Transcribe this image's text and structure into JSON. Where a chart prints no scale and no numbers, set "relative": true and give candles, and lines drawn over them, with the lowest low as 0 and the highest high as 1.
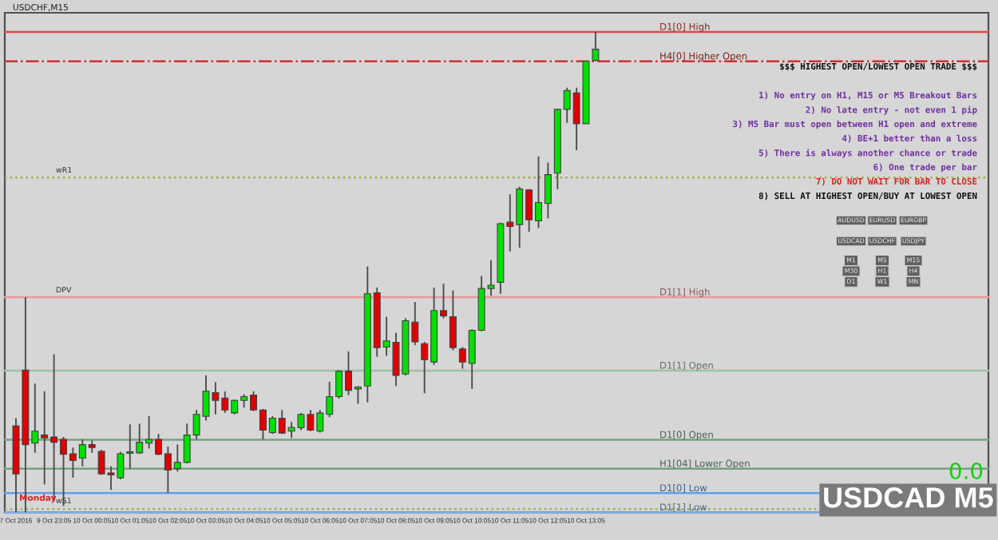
{
  "chart_data": {
    "type": "candlestick",
    "relative": true,
    "title": "USDCHF,M15",
    "categories": [
      "7 Oct 2016",
      null,
      null,
      null,
      "9 Oct 23:05",
      null,
      null,
      null,
      "10 Oct 00:05",
      null,
      null,
      null,
      "10 Oct 01:05",
      null,
      null,
      null,
      "10 Oct 02:05",
      null,
      null,
      null,
      "10 Oct 03:05",
      null,
      null,
      null,
      "10 Oct 04:05",
      null,
      null,
      null,
      "10 Oct 05:05",
      null,
      null,
      null,
      "10 Oct 06:05",
      null,
      null,
      null,
      "10 Oct 07:05",
      null,
      null,
      null,
      "10 Oct 08:05",
      null,
      null,
      null,
      "10 Oct 09:05",
      null,
      null,
      null,
      "10 Oct 10:05",
      null,
      null,
      null,
      "10 Oct 11:05",
      null,
      null,
      null,
      "10 Oct 12:05",
      null,
      null,
      null,
      "10 Oct 13:05",
      null
    ],
    "ohlc": [
      [
        0.18,
        0.196,
        0.0,
        0.08
      ],
      [
        0.296,
        0.448,
        0.0,
        0.141
      ],
      [
        0.144,
        0.268,
        0.124,
        0.169
      ],
      [
        0.161,
        0.252,
        0.058,
        0.155
      ],
      [
        0.157,
        0.329,
        0.024,
        0.146
      ],
      [
        0.152,
        0.157,
        0.013,
        0.121
      ],
      [
        0.122,
        0.135,
        0.072,
        0.108
      ],
      [
        0.113,
        0.152,
        0.096,
        0.141
      ],
      [
        0.141,
        0.15,
        0.124,
        0.135
      ],
      [
        0.127,
        0.13,
        0.078,
        0.08
      ],
      [
        0.082,
        0.096,
        0.047,
        0.078
      ],
      [
        0.072,
        0.126,
        0.069,
        0.122
      ],
      [
        0.123,
        0.183,
        0.091,
        0.125
      ],
      [
        0.124,
        0.185,
        0.122,
        0.146
      ],
      [
        0.144,
        0.2,
        0.133,
        0.152
      ],
      [
        0.152,
        0.163,
        0.119,
        0.121
      ],
      [
        0.122,
        0.137,
        0.041,
        0.088
      ],
      [
        0.091,
        0.141,
        0.085,
        0.104
      ],
      [
        0.104,
        0.185,
        0.102,
        0.161
      ],
      [
        0.161,
        0.213,
        0.152,
        0.204
      ],
      [
        0.2,
        0.285,
        0.191,
        0.252
      ],
      [
        0.249,
        0.271,
        0.204,
        0.233
      ],
      [
        0.238,
        0.252,
        0.207,
        0.213
      ],
      [
        0.207,
        0.235,
        0.204,
        0.233
      ],
      [
        0.233,
        0.246,
        0.218,
        0.241
      ],
      [
        0.244,
        0.252,
        0.211,
        0.213
      ],
      [
        0.213,
        0.215,
        0.152,
        0.171
      ],
      [
        0.166,
        0.2,
        0.163,
        0.196
      ],
      [
        0.196,
        0.213,
        0.163,
        0.165
      ],
      [
        0.169,
        0.188,
        0.155,
        0.177
      ],
      [
        0.176,
        0.207,
        0.171,
        0.204
      ],
      [
        0.204,
        0.213,
        0.169,
        0.171
      ],
      [
        0.169,
        0.213,
        0.166,
        0.207
      ],
      [
        0.204,
        0.272,
        0.198,
        0.241
      ],
      [
        0.241,
        0.296,
        0.237,
        0.294
      ],
      [
        0.294,
        0.335,
        0.244,
        0.254
      ],
      [
        0.257,
        0.263,
        0.226,
        0.261
      ],
      [
        0.263,
        0.512,
        0.229,
        0.455
      ],
      [
        0.457,
        0.468,
        0.324,
        0.343
      ],
      [
        0.344,
        0.407,
        0.326,
        0.357
      ],
      [
        0.354,
        0.374,
        0.263,
        0.285
      ],
      [
        0.288,
        0.404,
        0.285,
        0.399
      ],
      [
        0.396,
        0.438,
        0.348,
        0.355
      ],
      [
        0.351,
        0.355,
        0.248,
        0.318
      ],
      [
        0.313,
        0.468,
        0.307,
        0.42
      ],
      [
        0.42,
        0.476,
        0.404,
        0.409
      ],
      [
        0.407,
        0.462,
        0.337,
        0.343
      ],
      [
        0.34,
        0.344,
        0.299,
        0.313
      ],
      [
        0.31,
        0.381,
        0.257,
        0.379
      ],
      [
        0.379,
        0.492,
        0.377,
        0.466
      ],
      [
        0.466,
        0.525,
        0.451,
        0.473
      ],
      [
        0.479,
        0.603,
        0.455,
        0.601
      ],
      [
        0.604,
        0.662,
        0.543,
        0.595
      ],
      [
        0.599,
        0.678,
        0.551,
        0.673
      ],
      [
        0.671,
        0.673,
        0.584,
        0.609
      ],
      [
        0.607,
        0.741,
        0.592,
        0.645
      ],
      [
        0.643,
        0.728,
        0.612,
        0.703
      ],
      [
        0.706,
        0.839,
        0.673,
        0.839
      ],
      [
        0.839,
        0.884,
        0.811,
        0.878
      ],
      [
        0.873,
        0.884,
        0.754,
        0.809
      ],
      [
        0.809,
        0.939,
        0.809,
        0.939
      ],
      [
        0.941,
        1.0,
        0.939,
        0.964
      ]
    ],
    "colors": [
      "#e00000",
      "#e00000",
      "#00e000",
      "#e00000",
      "#e00000",
      "#e00000",
      "#e00000",
      "#00e000",
      "#e00000",
      "#e00000",
      "#e00000",
      "#00e000",
      "#00e000",
      "#00e000",
      "#00e000",
      "#e00000",
      "#e00000",
      "#00e000",
      "#00e000",
      "#00e000",
      "#00e000",
      "#e00000",
      "#e00000",
      "#00e000",
      "#00e000",
      "#e00000",
      "#e00000",
      "#00e000",
      "#e00000",
      "#00e000",
      "#00e000",
      "#e00000",
      "#00e000",
      "#00e000",
      "#00e000",
      "#e00000",
      "#00e000",
      "#00e000",
      "#e00000",
      "#00e000",
      "#e00000",
      "#00e000",
      "#e00000",
      "#e00000",
      "#00e000",
      "#e00000",
      "#e00000",
      "#e00000",
      "#00e000",
      "#00e000",
      "#00e000",
      "#00e000",
      "#e00000",
      "#00e000",
      "#e00000",
      "#00e000",
      "#00e000",
      "#00e000",
      "#00e000",
      "#e00000",
      "#00e000",
      "#00e000"
    ],
    "ref_lines": [
      {
        "axis": "y",
        "value": 1.0,
        "label": "D1[0] High",
        "color": "#e04848",
        "line_style": "solid"
      },
      {
        "axis": "y",
        "value": 0.939,
        "label": "H4[0] Higher Open",
        "color": "#d03030",
        "line_style": "dashed"
      },
      {
        "axis": "y",
        "value": 0.697,
        "label": null,
        "color": "#a8a850",
        "line_style": "dotted"
      },
      {
        "axis": "y",
        "value": 0.448,
        "label": "D1[1] High",
        "color": "#e89898",
        "line_style": "solid"
      },
      {
        "axis": "y",
        "value": 0.295,
        "label": "D1[1] Open",
        "color": "#a0c0a8",
        "line_style": "solid"
      },
      {
        "axis": "y",
        "value": 0.151,
        "label": "D1[0] Open",
        "color": "#78a080",
        "line_style": "solid"
      },
      {
        "axis": "y",
        "value": 0.091,
        "label": "H1[04] Lower Open",
        "color": "#78a080",
        "line_style": "solid"
      },
      {
        "axis": "y",
        "value": 0.04,
        "label": "D1[0] Low",
        "color": "#60a0e8",
        "line_style": "solid"
      },
      {
        "axis": "y",
        "value": 0.007,
        "label": null,
        "color": "#a8a850",
        "line_style": "dotted"
      },
      {
        "axis": "y",
        "value": 0.0,
        "label": "D1[1] Low",
        "color": "#80b0e8",
        "line_style": "solid"
      }
    ],
    "annotations": [
      "$$$ HIGHEST OPEN/LOWEST OPEN TRADE $$$",
      "1) No entry on H1, M15 or M5 Breakout Bars",
      "2) No late entry - not even 1 pip",
      "3) M5 Bar must open between H1 open and extreme",
      "4) BE+1 better than a loss",
      "5) There is always another chance or trade",
      "6) One trade per bar",
      "7) DO NOT WAIT FOR BAR TO CLOSE",
      "8) SELL AT HIGHEST OPEN/BUY AT LOWEST OPEN",
      "AUDUSD",
      "EURUSD",
      "EURGBP",
      "USDCAD",
      "USDCHF",
      "USDJPY",
      "M1",
      "M5",
      "M15",
      "M30",
      "H1",
      "H4",
      "D1",
      "W1",
      "MN",
      "USDCAD M5",
      "0.0",
      "Monday",
      "wR1",
      "DPV",
      "wS1"
    ]
  }
}
